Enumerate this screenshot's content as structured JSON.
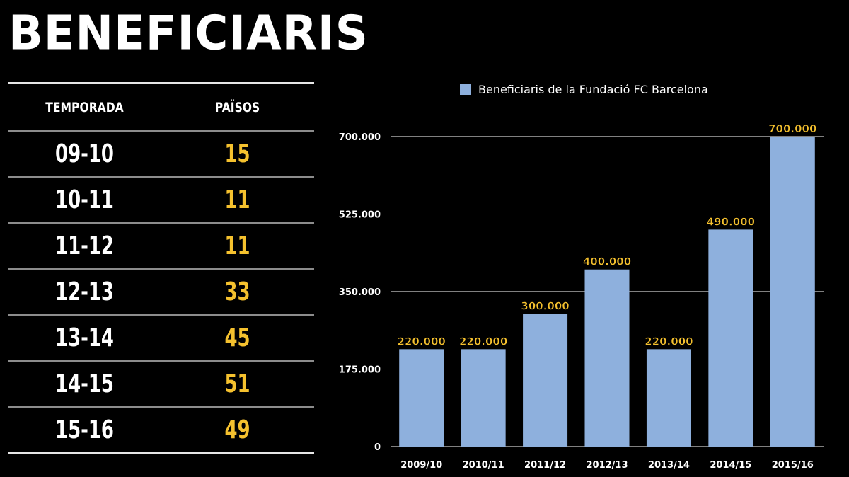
{
  "title": "BENEFICIARIS",
  "table": {
    "headers": [
      "TEMPORADA",
      "PAÏSOS"
    ],
    "rows": [
      {
        "season": "09-10",
        "countries": "15"
      },
      {
        "season": "10-11",
        "countries": "11"
      },
      {
        "season": "11-12",
        "countries": "11"
      },
      {
        "season": "12-13",
        "countries": "33"
      },
      {
        "season": "13-14",
        "countries": "45"
      },
      {
        "season": "14-15",
        "countries": "51"
      },
      {
        "season": "15-16",
        "countries": "49"
      }
    ]
  },
  "colors": {
    "background": "#000000",
    "bar": "#8eb0dd",
    "accent": "#f5c12e",
    "text": "#ffffff"
  },
  "chart_data": {
    "type": "bar",
    "categories": [
      "2009/10",
      "2010/11",
      "2011/12",
      "2012/13",
      "2013/14",
      "2014/15",
      "2015/16"
    ],
    "series": [
      {
        "name": "Beneficiaris de la Fundació FC Barcelona",
        "values": [
          220000,
          220000,
          300000,
          400000,
          220000,
          490000,
          700000
        ],
        "labels": [
          "220.000",
          "220.000",
          "300.000",
          "400.000",
          "220.000",
          "490.000",
          "700.000"
        ]
      }
    ],
    "yticks": [
      0,
      175000,
      350000,
      525000,
      700000
    ],
    "ytick_labels": [
      "0",
      "175.000",
      "350.000",
      "525.000",
      "700.000"
    ],
    "ylim": [
      0,
      700000
    ],
    "grid": true,
    "legend": "top"
  }
}
